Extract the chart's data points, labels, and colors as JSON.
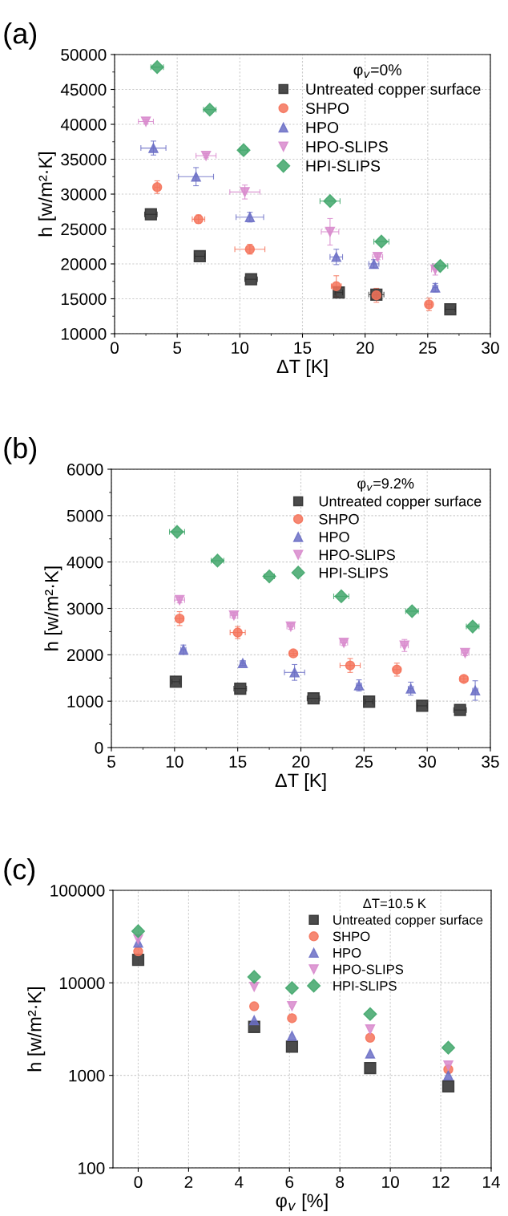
{
  "chart_data": [
    {
      "type": "scatter",
      "title": "(a)",
      "legend_title": "φ$_{v}$=0%",
      "xlabel": "ΔT [K]",
      "ylabel": "h [w/m²·K]",
      "xlim": [
        0,
        30
      ],
      "xticks": [
        0,
        5,
        10,
        15,
        20,
        25,
        30
      ],
      "ylim": [
        10000,
        50000
      ],
      "yticks": [
        10000,
        15000,
        20000,
        25000,
        30000,
        35000,
        40000,
        45000,
        50000
      ],
      "grid": true,
      "legend": "top right",
      "series": [
        {
          "name": "Untreated copper surface",
          "color": "#2b2b2b",
          "marker": "square",
          "x": [
            2.9,
            6.8,
            10.9,
            17.9,
            20.9,
            26.8
          ],
          "values": [
            27100,
            21100,
            17800,
            15900,
            15600,
            13500
          ],
          "xerrors": [
            0.5,
            0.4,
            0.5,
            0.3,
            0.6,
            0.4
          ]
        },
        {
          "name": "SHPO",
          "color": "#f4735b",
          "marker": "circle",
          "x": [
            3.4,
            6.7,
            10.8,
            17.7,
            20.9,
            25.1
          ],
          "values": [
            31000,
            26400,
            22100,
            16800,
            15500,
            14200
          ],
          "xerrors": [
            0.2,
            0.5,
            1.2,
            0.4,
            0.3,
            0.2
          ],
          "errors": [
            900,
            600,
            700,
            1500,
            1000,
            900
          ]
        },
        {
          "name": "HPO",
          "color": "#6b6fc6",
          "marker": "triangle",
          "x": [
            3.1,
            6.5,
            10.8,
            17.7,
            20.7,
            25.6
          ],
          "values": [
            36600,
            32500,
            26700,
            21000,
            20000,
            16600
          ],
          "xerrors": [
            1.0,
            1.4,
            1.1,
            0.5,
            0.4,
            0.2
          ],
          "errors": [
            1000,
            1300,
            700,
            1100,
            600,
            600
          ]
        },
        {
          "name": "HPO-SLIPS",
          "color": "#d889cc",
          "marker": "triangle_down",
          "x": [
            2.5,
            7.3,
            10.4,
            17.2,
            21.0,
            25.6
          ],
          "values": [
            40400,
            35500,
            30300,
            24600,
            21000,
            19200
          ],
          "xerrors": [
            0.6,
            0.8,
            1.2,
            0.7,
            0.4,
            0.3
          ],
          "errors": [
            300,
            300,
            1000,
            1900,
            400,
            800
          ]
        },
        {
          "name": "HPI-SLIPS",
          "color": "#3fa66a",
          "marker": "diamond",
          "x": [
            3.4,
            7.6,
            10.3,
            17.2,
            21.3,
            26.0
          ],
          "values": [
            48200,
            42100,
            36300,
            29000,
            23200,
            19700
          ],
          "xerrors": [
            0.5,
            0.5,
            0.3,
            0.8,
            0.6,
            0.6
          ]
        }
      ]
    },
    {
      "type": "scatter",
      "title": "(b)",
      "legend_title": "φ$_{v}$=9.2%",
      "xlabel": "ΔT [K]",
      "ylabel": "h [w/m²·K]",
      "xlim": [
        5,
        35
      ],
      "xticks": [
        5,
        10,
        15,
        20,
        25,
        30,
        35
      ],
      "ylim": [
        0,
        6000
      ],
      "yticks": [
        0,
        1000,
        2000,
        3000,
        4000,
        5000,
        6000
      ],
      "grid": true,
      "legend": "top right",
      "series": [
        {
          "name": "Untreated copper surface",
          "color": "#2b2b2b",
          "marker": "square",
          "x": [
            10.1,
            15.2,
            21.0,
            25.4,
            29.6,
            32.6
          ],
          "values": [
            1420,
            1270,
            1060,
            990,
            900,
            810
          ],
          "xerrors": [
            0.3,
            0.5,
            0.5,
            0.3,
            0.4,
            0.5
          ]
        },
        {
          "name": "SHPO",
          "color": "#f4735b",
          "marker": "circle",
          "x": [
            10.4,
            15.0,
            19.4,
            23.9,
            27.6,
            32.9
          ],
          "values": [
            2780,
            2480,
            2030,
            1770,
            1680,
            1480
          ],
          "xerrors": [
            0.3,
            0.6,
            0.3,
            0.8,
            0.3,
            0.3
          ],
          "errors": [
            150,
            130,
            50,
            150,
            140,
            60
          ]
        },
        {
          "name": "HPO",
          "color": "#6b6fc6",
          "marker": "triangle",
          "x": [
            10.7,
            15.4,
            19.5,
            24.6,
            28.7,
            33.8
          ],
          "values": [
            2110,
            1820,
            1620,
            1340,
            1270,
            1230
          ],
          "xerrors": [
            0.2,
            0.2,
            0.8,
            0.2,
            0.2,
            0.2
          ],
          "errors": [
            100,
            50,
            170,
            120,
            140,
            210
          ]
        },
        {
          "name": "HPO-SLIPS",
          "color": "#d889cc",
          "marker": "triangle_down",
          "x": [
            10.4,
            14.7,
            19.2,
            23.4,
            28.2,
            33.0
          ],
          "values": [
            3180,
            2850,
            2610,
            2260,
            2200,
            2040
          ],
          "xerrors": [
            0.4,
            0.3,
            0.3,
            0.3,
            0.3,
            0.3
          ],
          "errors": [
            60,
            60,
            60,
            60,
            130,
            60
          ]
        },
        {
          "name": "HPI-SLIPS",
          "color": "#3fa66a",
          "marker": "diamond",
          "x": [
            10.2,
            13.4,
            17.5,
            23.2,
            28.8,
            33.6
          ],
          "values": [
            4650,
            4030,
            3690,
            3260,
            2940,
            2610
          ],
          "xerrors": [
            0.6,
            0.5,
            0.4,
            0.6,
            0.5,
            0.5
          ]
        }
      ]
    },
    {
      "type": "scatter",
      "title": "(c)",
      "legend_title": "ΔT=10.5 K",
      "xlabel": "φ$_{v}$ [%]",
      "ylabel": "h [w/m²·K]",
      "xlim": [
        -1,
        14
      ],
      "xticks": [
        0,
        2,
        4,
        6,
        8,
        10,
        12,
        14
      ],
      "ylim": [
        100,
        100000
      ],
      "yticks": [
        100,
        1000,
        10000,
        100000
      ],
      "log": "y",
      "grid": true,
      "legend": "top right",
      "series": [
        {
          "name": "Untreated copper surface",
          "color": "#2b2b2b",
          "marker": "square",
          "x": [
            0,
            4.6,
            6.1,
            9.2,
            12.3
          ],
          "values": [
            17700,
            3340,
            2040,
            1200,
            760
          ]
        },
        {
          "name": "SHPO",
          "color": "#f4735b",
          "marker": "circle",
          "x": [
            0,
            4.6,
            6.1,
            9.2,
            12.3
          ],
          "values": [
            21900,
            5580,
            4150,
            2550,
            1160
          ]
        },
        {
          "name": "HPO",
          "color": "#6b6fc6",
          "marker": "triangle",
          "x": [
            0,
            4.6,
            6.1,
            9.2,
            12.3
          ],
          "values": [
            27200,
            3930,
            2670,
            1720,
            1000
          ]
        },
        {
          "name": "HPO-SLIPS",
          "color": "#d889cc",
          "marker": "triangle_down",
          "x": [
            0,
            4.6,
            6.1,
            9.2,
            12.3
          ],
          "values": [
            29600,
            9080,
            5620,
            3140,
            1280
          ]
        },
        {
          "name": "HPI-SLIPS",
          "color": "#3fa66a",
          "marker": "diamond",
          "x": [
            0,
            4.6,
            6.1,
            9.2,
            12.3
          ],
          "values": [
            36200,
            11600,
            8800,
            4600,
            1990
          ]
        }
      ]
    }
  ]
}
